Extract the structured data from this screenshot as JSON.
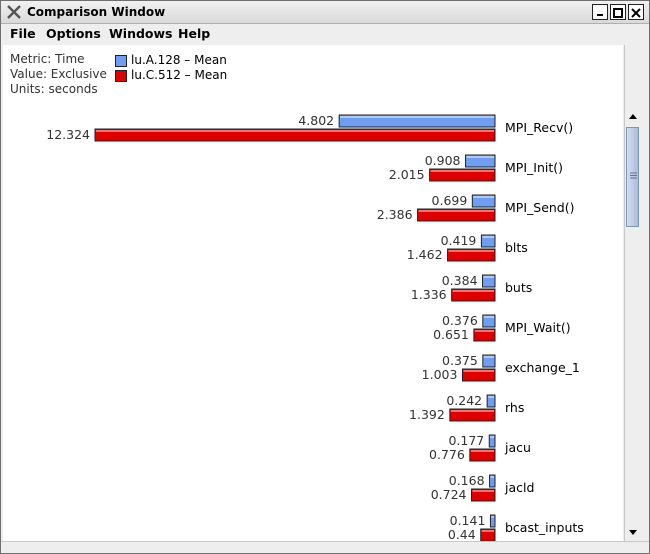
{
  "window": {
    "title": "Comparison Window"
  },
  "menu": [
    "File",
    "Options",
    "Windows",
    "Help"
  ],
  "info": {
    "metric": "Metric: Time",
    "value": "Value: Exclusive",
    "units": "Units: seconds"
  },
  "legend": [
    {
      "label": "lu.A.128 – Mean",
      "color": "#6f9ef0"
    },
    {
      "label": "lu.C.512 – Mean",
      "color": "#dd0000"
    }
  ],
  "chart_data": {
    "type": "bar",
    "orientation": "horizontal",
    "categories": [
      "MPI_Recv()",
      "MPI_Init()",
      "MPI_Send()",
      "blts",
      "buts",
      "MPI_Wait()",
      "exchange_1",
      "rhs",
      "jacu",
      "jacld",
      "bcast_inputs"
    ],
    "series": [
      {
        "name": "lu.A.128 – Mean",
        "color": "#6f9ef0",
        "values": [
          4.802,
          0.908,
          0.699,
          0.419,
          0.384,
          0.376,
          0.375,
          0.242,
          0.177,
          0.168,
          0.141
        ]
      },
      {
        "name": "lu.C.512 – Mean",
        "color": "#dd0000",
        "values": [
          12.324,
          2.015,
          2.386,
          1.462,
          1.336,
          0.651,
          1.003,
          1.392,
          0.776,
          0.724,
          0.44
        ]
      }
    ],
    "value_labels": [
      [
        "4.802",
        "0.908",
        "0.699",
        "0.419",
        "0.384",
        "0.376",
        "0.375",
        "0.242",
        "0.177",
        "0.168",
        "0.141"
      ],
      [
        "12.324",
        "2.015",
        "2.386",
        "1.462",
        "1.336",
        "0.651",
        "1.003",
        "1.392",
        "0.776",
        "0.724",
        "0.44"
      ]
    ]
  }
}
